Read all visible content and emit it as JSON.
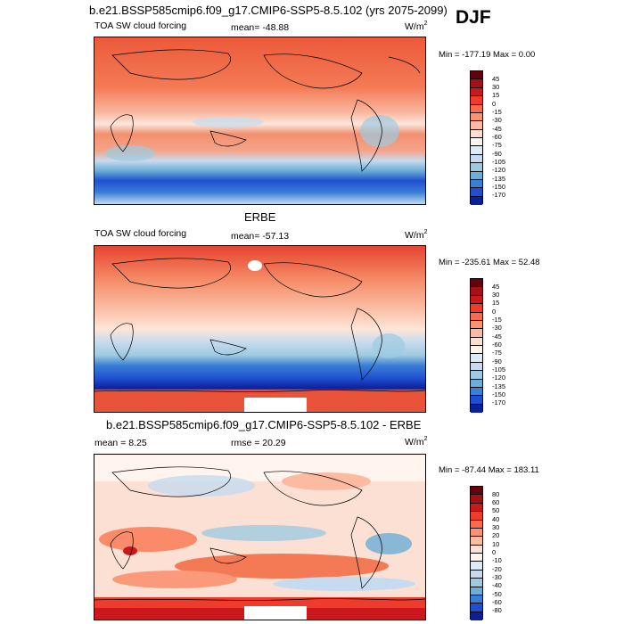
{
  "season": "DJF",
  "panels": [
    {
      "heading": "b.e21.BSSP585cmip6.f09_g17.CMIP6-SSP5-8.5.102 (yrs 2075-2099)",
      "left_label": "TOA SW cloud forcing",
      "center_label": "mean= -48.88",
      "units": "W/m",
      "units_sup": "2",
      "minmax": "Min = -177.19 Max =   0.00",
      "colorbar": {
        "labels": [
          "45",
          "30",
          "15",
          "0",
          "-15",
          "-30",
          "-45",
          "-60",
          "-75",
          "-90",
          "-105",
          "-120",
          "-135",
          "-150",
          "-170"
        ],
        "colors": [
          "#67000d",
          "#a50f15",
          "#cb181d",
          "#ef3b2c",
          "#fb6a4a",
          "#fc9272",
          "#fcbba1",
          "#fee0d2",
          "#fff5ee",
          "#deebf7",
          "#c6dbef",
          "#9ecae1",
          "#6baed6",
          "#3a7fd6",
          "#1f4fd0",
          "#0a1f9a"
        ]
      }
    },
    {
      "heading": "ERBE",
      "left_label": "TOA SW cloud forcing",
      "center_label": "mean= -57.13",
      "units": "W/m",
      "units_sup": "2",
      "minmax": "Min = -235.61 Max =  52.48",
      "colorbar": {
        "labels": [
          "45",
          "30",
          "15",
          "0",
          "-15",
          "-30",
          "-45",
          "-60",
          "-75",
          "-90",
          "-105",
          "-120",
          "-135",
          "-150",
          "-170"
        ],
        "colors": [
          "#67000d",
          "#a50f15",
          "#cb181d",
          "#ef3b2c",
          "#fb6a4a",
          "#fc9272",
          "#fcbba1",
          "#fee0d2",
          "#fff5ee",
          "#deebf7",
          "#c6dbef",
          "#9ecae1",
          "#6baed6",
          "#3a7fd6",
          "#1f4fd0",
          "#0a1f9a"
        ]
      }
    },
    {
      "heading": "b.e21.BSSP585cmip6.f09_g17.CMIP6-SSP5-8.5.102 - ERBE",
      "left_label": "mean =   8.25",
      "center_label": "rmse =  20.29",
      "units": "W/m",
      "units_sup": "2",
      "minmax": "Min = -87.44 Max = 183.11",
      "colorbar": {
        "labels": [
          "80",
          "60",
          "50",
          "40",
          "30",
          "20",
          "10",
          "0",
          "-10",
          "-20",
          "-30",
          "-40",
          "-50",
          "-60",
          "-80"
        ],
        "colors": [
          "#67000d",
          "#a50f15",
          "#cb181d",
          "#ef3b2c",
          "#fb6a4a",
          "#fc9272",
          "#fcbba1",
          "#fee0d2",
          "#fff5ee",
          "#deebf7",
          "#c6dbef",
          "#9ecae1",
          "#6baed6",
          "#3a7fd6",
          "#1f4fd0",
          "#0a1f9a"
        ]
      }
    }
  ]
}
